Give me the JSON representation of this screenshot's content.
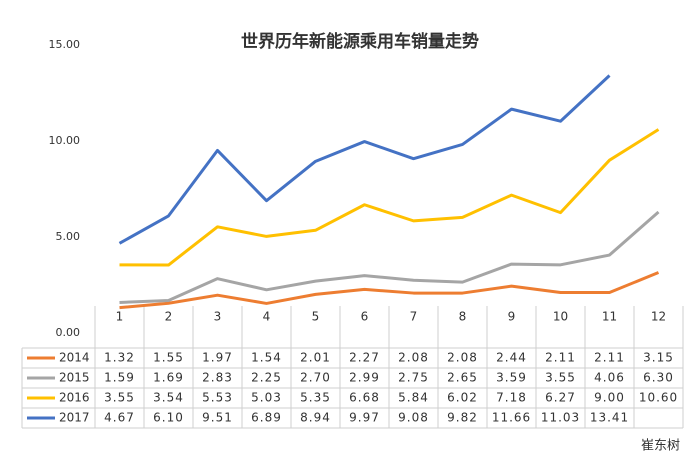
{
  "chart_data": {
    "type": "line",
    "title": "世界历年新能源乘用车销量走势",
    "categories": [
      "1",
      "2",
      "3",
      "4",
      "5",
      "6",
      "7",
      "8",
      "9",
      "10",
      "11",
      "12"
    ],
    "series": [
      {
        "name": "2014",
        "color": "#ed7d31",
        "values": [
          1.32,
          1.55,
          1.97,
          1.54,
          2.01,
          2.27,
          2.08,
          2.08,
          2.44,
          2.11,
          2.11,
          3.15
        ],
        "value_labels": [
          "1.32",
          "1.55",
          "1.97",
          "1.54",
          "2.01",
          "2.27",
          "2.08",
          "2.08",
          "2.44",
          "2.11",
          "2.11",
          "3.15"
        ]
      },
      {
        "name": "2015",
        "color": "#a5a5a5",
        "values": [
          1.59,
          1.69,
          2.83,
          2.25,
          2.7,
          2.99,
          2.75,
          2.65,
          3.59,
          3.55,
          4.06,
          6.3
        ],
        "value_labels": [
          "1.59",
          "1.69",
          "2.83",
          "2.25",
          "2.70",
          "2.99",
          "2.75",
          "2.65",
          "3.59",
          "3.55",
          "4.06",
          "6.30"
        ]
      },
      {
        "name": "2016",
        "color": "#ffc000",
        "values": [
          3.55,
          3.54,
          5.53,
          5.03,
          5.35,
          6.68,
          5.84,
          6.02,
          7.18,
          6.27,
          9.0,
          10.6
        ],
        "value_labels": [
          "3.55",
          "3.54",
          "5.53",
          "5.03",
          "5.35",
          "6.68",
          "5.84",
          "6.02",
          "7.18",
          "6.27",
          "9.00",
          "10.60"
        ]
      },
      {
        "name": "2017",
        "color": "#4472c4",
        "values": [
          4.67,
          6.1,
          9.51,
          6.89,
          8.94,
          9.97,
          9.08,
          9.82,
          11.66,
          11.03,
          13.41,
          null
        ],
        "value_labels": [
          "4.67",
          "6.10",
          "9.51",
          "6.89",
          "8.94",
          "9.97",
          "9.08",
          "9.82",
          "11.66",
          "11.03",
          "13.41",
          null
        ]
      }
    ],
    "ylim": [
      0,
      15
    ],
    "yticks": [
      {
        "value": 0,
        "label": "0.00"
      },
      {
        "value": 5,
        "label": "5.00"
      },
      {
        "value": 10,
        "label": "10.00"
      },
      {
        "value": 15,
        "label": "15.00"
      }
    ],
    "legend": "table",
    "watermark": "崔东树"
  }
}
